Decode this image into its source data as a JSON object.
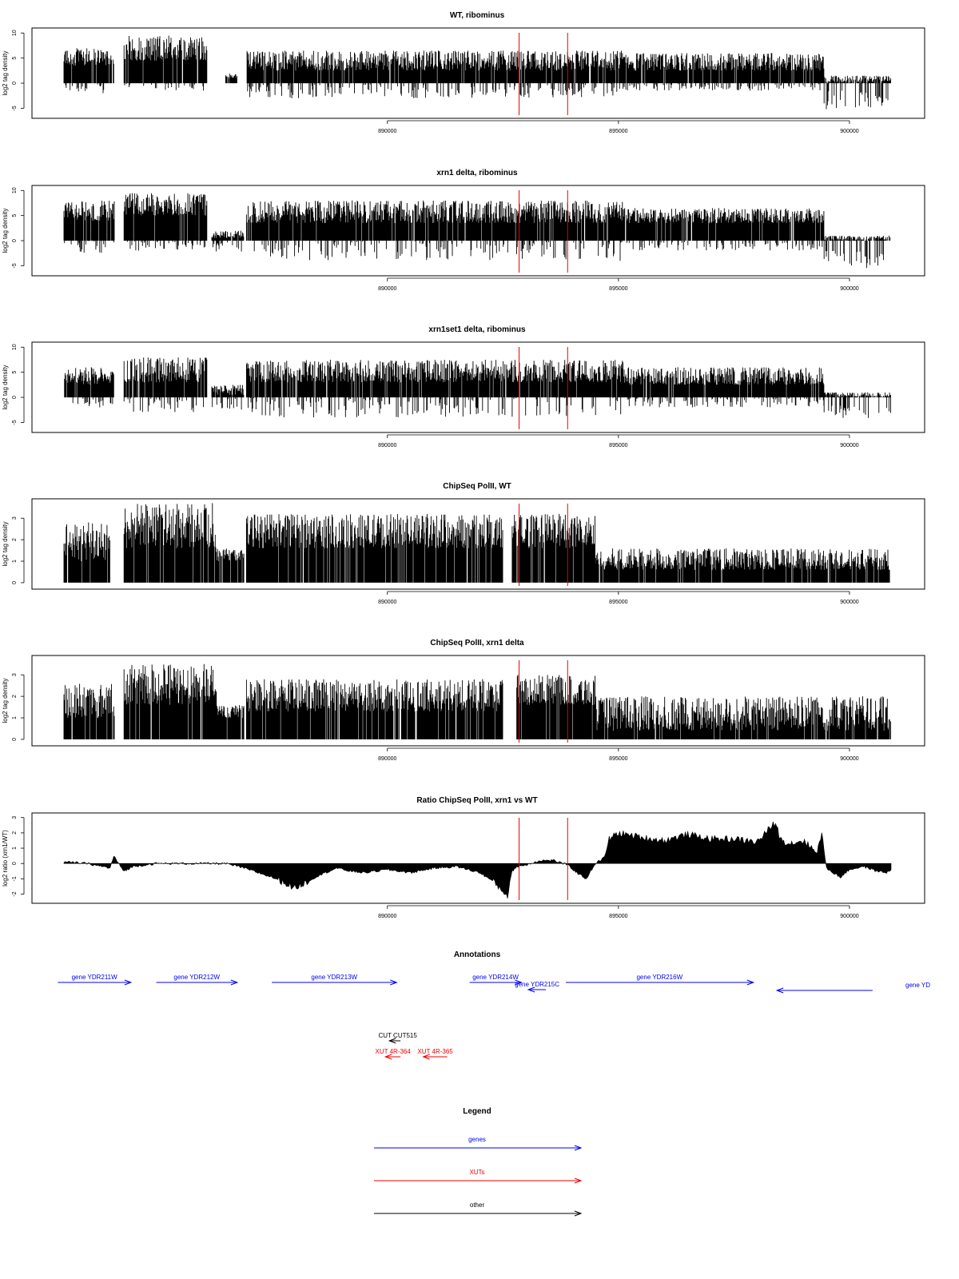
{
  "chart_data": [
    {
      "type": "bar",
      "title": "WT, ribominus",
      "ylabel": "log2 tag density",
      "xlabel": "",
      "ylim": [
        -7,
        11
      ],
      "yticks": [
        -5,
        0,
        5,
        10
      ],
      "xlim": [
        882000,
        902000
      ],
      "xticks": [
        890000,
        895000,
        900000
      ],
      "red_lines": [
        892850,
        893900
      ],
      "segments": [
        {
          "x": [
            883000,
            884080
          ],
          "pos": [
            3.5,
            7
          ],
          "neg": [
            0,
            2
          ]
        },
        {
          "x": [
            884300,
            886100
          ],
          "pos": [
            4.5,
            9.5
          ],
          "neg": [
            0,
            1.5
          ]
        },
        {
          "x": [
            886500,
            886750
          ],
          "pos": [
            1,
            2
          ],
          "neg": [
            0,
            0
          ]
        },
        {
          "x": [
            886950,
            895100
          ],
          "pos": [
            2.5,
            6.5
          ],
          "neg": [
            0,
            3
          ]
        },
        {
          "x": [
            895100,
            899450
          ],
          "pos": [
            2.5,
            6
          ],
          "neg": [
            0,
            1.5
          ]
        },
        {
          "x": [
            899450,
            900900
          ],
          "pos": [
            0,
            1.5
          ],
          "neg": [
            1.5,
            5.5
          ]
        }
      ]
    },
    {
      "type": "bar",
      "title": "xrn1 delta, ribominus",
      "ylabel": "log2 tag density",
      "xlabel": "",
      "ylim": [
        -7,
        11
      ],
      "yticks": [
        -5,
        0,
        5,
        10
      ],
      "xlim": [
        882000,
        902000
      ],
      "xticks": [
        890000,
        895000,
        900000
      ],
      "red_lines": [
        892850,
        893900
      ],
      "segments": [
        {
          "x": [
            883000,
            884100
          ],
          "pos": [
            4,
            8
          ],
          "neg": [
            0,
            2.5
          ]
        },
        {
          "x": [
            884300,
            886100
          ],
          "pos": [
            5,
            9.5
          ],
          "neg": [
            0,
            2
          ]
        },
        {
          "x": [
            886200,
            886900
          ],
          "pos": [
            0.5,
            2
          ],
          "neg": [
            0,
            2.5
          ]
        },
        {
          "x": [
            886950,
            895100
          ],
          "pos": [
            3.5,
            8
          ],
          "neg": [
            0,
            4
          ]
        },
        {
          "x": [
            895100,
            899450
          ],
          "pos": [
            3.5,
            6.5
          ],
          "neg": [
            0,
            2
          ]
        },
        {
          "x": [
            899450,
            900900
          ],
          "pos": [
            0,
            1
          ],
          "neg": [
            2,
            5.5
          ]
        }
      ]
    },
    {
      "type": "bar",
      "title": "xrn1set1 delta, ribominus",
      "ylabel": "log2 tag density",
      "xlabel": "",
      "ylim": [
        -7,
        11
      ],
      "yticks": [
        -5,
        0,
        5,
        10
      ],
      "xlim": [
        882000,
        902000
      ],
      "xticks": [
        890000,
        895000,
        900000
      ],
      "red_lines": [
        892850,
        893900
      ],
      "segments": [
        {
          "x": [
            883000,
            884080
          ],
          "pos": [
            2.5,
            6
          ],
          "neg": [
            0,
            2
          ]
        },
        {
          "x": [
            884300,
            886100
          ],
          "pos": [
            3,
            8
          ],
          "neg": [
            0,
            3
          ]
        },
        {
          "x": [
            886200,
            886900
          ],
          "pos": [
            0.5,
            2.5
          ],
          "neg": [
            0,
            2.5
          ]
        },
        {
          "x": [
            886950,
            895100
          ],
          "pos": [
            3,
            7.5
          ],
          "neg": [
            0,
            4
          ]
        },
        {
          "x": [
            895100,
            899450
          ],
          "pos": [
            2.5,
            6
          ],
          "neg": [
            0,
            2
          ]
        },
        {
          "x": [
            899450,
            900900
          ],
          "pos": [
            0,
            1
          ],
          "neg": [
            1.5,
            4.5
          ]
        }
      ]
    },
    {
      "type": "bar",
      "title": "ChipSeq PolII, WT",
      "ylabel": "log2 tag density",
      "xlabel": "",
      "ylim": [
        -0.3,
        3.9
      ],
      "yticks": [
        0,
        1,
        2,
        3
      ],
      "xlim": [
        882000,
        902000
      ],
      "xticks": [
        890000,
        895000,
        900000
      ],
      "red_lines": [
        892850,
        893900
      ],
      "segments": [
        {
          "x": [
            883000,
            884000
          ],
          "pos": [
            1,
            2.8
          ],
          "neg": [
            0,
            0
          ]
        },
        {
          "x": [
            884300,
            886300
          ],
          "pos": [
            1.6,
            3.7
          ],
          "neg": [
            0,
            0
          ]
        },
        {
          "x": [
            886300,
            886900
          ],
          "pos": [
            1,
            1.6
          ],
          "neg": [
            0,
            0
          ]
        },
        {
          "x": [
            886950,
            892500
          ],
          "pos": [
            1.6,
            3.2
          ],
          "neg": [
            0,
            0
          ]
        },
        {
          "x": [
            892700,
            894500
          ],
          "pos": [
            1.6,
            3.2
          ],
          "neg": [
            0,
            0
          ]
        },
        {
          "x": [
            894500,
            900900
          ],
          "pos": [
            0.6,
            1.6
          ],
          "neg": [
            0,
            0
          ]
        }
      ]
    },
    {
      "type": "bar",
      "title": "ChipSeq PolII, xrn1 delta",
      "ylabel": "log2 tag density",
      "xlabel": "",
      "ylim": [
        -0.3,
        3.9
      ],
      "yticks": [
        0,
        1,
        2,
        3
      ],
      "xlim": [
        882000,
        902000
      ],
      "xticks": [
        890000,
        895000,
        900000
      ],
      "red_lines": [
        892850,
        893900
      ],
      "segments": [
        {
          "x": [
            883000,
            884100
          ],
          "pos": [
            1,
            2.6
          ],
          "neg": [
            0,
            0
          ]
        },
        {
          "x": [
            884300,
            886300
          ],
          "pos": [
            1.6,
            3.5
          ],
          "neg": [
            0,
            0
          ]
        },
        {
          "x": [
            886300,
            886900
          ],
          "pos": [
            1,
            1.6
          ],
          "neg": [
            0,
            0
          ]
        },
        {
          "x": [
            886950,
            892500
          ],
          "pos": [
            1.3,
            2.8
          ],
          "neg": [
            0,
            0
          ]
        },
        {
          "x": [
            892800,
            894500
          ],
          "pos": [
            1.6,
            3
          ],
          "neg": [
            0,
            0
          ]
        },
        {
          "x": [
            894500,
            900900
          ],
          "pos": [
            0.4,
            2
          ],
          "neg": [
            0,
            0
          ]
        }
      ]
    },
    {
      "type": "area",
      "title": "Ratio ChipSeq PolII, xrn1 vs WT",
      "ylabel": "log2 ratio (xrn1/WT)",
      "xlabel": "",
      "ylim": [
        -2.6,
        3.3
      ],
      "yticks": [
        -2,
        -1,
        0,
        1,
        2,
        3
      ],
      "xlim": [
        882000,
        902000
      ],
      "xticks": [
        890000,
        895000,
        900000
      ],
      "red_lines": [
        892850,
        893900
      ],
      "x": [
        883000,
        883500,
        884000,
        884080,
        884200,
        884300,
        884500,
        885000,
        885500,
        886200,
        886500,
        886900,
        887200,
        887600,
        888000,
        888500,
        888900,
        889200,
        889500,
        890000,
        890500,
        891000,
        891500,
        892000,
        892300,
        892600,
        892700,
        892800,
        893000,
        893300,
        893600,
        893900,
        894100,
        894300,
        894500,
        894700,
        894800,
        895000,
        895500,
        896000,
        896500,
        897000,
        897500,
        898000,
        898400,
        898500,
        898700,
        899000,
        899300,
        899400,
        899500,
        899800,
        900000,
        900300,
        900600,
        900800,
        900900
      ],
      "y": [
        0.1,
        0.0,
        -0.3,
        0.5,
        -0.1,
        -0.5,
        -0.2,
        0.0,
        0.0,
        0.0,
        0.0,
        -0.3,
        -0.6,
        -1.0,
        -1.6,
        -0.8,
        -0.3,
        -0.5,
        -0.6,
        -0.4,
        -0.6,
        -0.3,
        -0.2,
        -0.6,
        -1.2,
        -2.1,
        -0.5,
        -0.2,
        -0.1,
        0.2,
        0.2,
        -0.1,
        -0.6,
        -1.0,
        0.0,
        0.4,
        1.6,
        2.0,
        1.7,
        1.5,
        1.9,
        1.6,
        1.6,
        1.4,
        2.7,
        1.6,
        1.3,
        1.5,
        0.7,
        2.0,
        -0.3,
        -0.9,
        -0.4,
        -0.2,
        -0.5,
        -0.6,
        -0.4
      ]
    }
  ],
  "annotations": {
    "title": "Annotations",
    "genes": [
      {
        "label": "gene YDR211W",
        "x1": 882870,
        "x2": 884450,
        "dir": "right",
        "row": 0
      },
      {
        "label": "gene YDR212W",
        "x1": 885000,
        "x2": 886750,
        "dir": "right",
        "row": 0
      },
      {
        "label": "gene YDR213W",
        "x1": 887500,
        "x2": 890200,
        "dir": "right",
        "row": 0
      },
      {
        "label": "gene YDR214W",
        "x1": 891780,
        "x2": 892900,
        "dir": "right",
        "row": 0
      },
      {
        "label": "gene YDR215C",
        "x1": 893050,
        "x2": 893430,
        "dir": "left",
        "row": 1
      },
      {
        "label": "gene YDR216W",
        "x1": 893860,
        "x2": 897920,
        "dir": "right",
        "row": 0
      },
      {
        "label": "gene YD",
        "x1": 898430,
        "x2": 900500,
        "dir": "left",
        "row": 2
      }
    ],
    "other": [
      {
        "label": "CUT CUT515",
        "x1": 889870,
        "x2": 890370,
        "dir": "left"
      }
    ],
    "xuts": [
      {
        "label": "XUT 4R-364",
        "x1": 889870,
        "x2": 890370,
        "dir": "left"
      },
      {
        "label": "XUT 4R-365",
        "x1": 890690,
        "x2": 891380,
        "dir": "left"
      }
    ]
  },
  "legend": {
    "title": "Legend",
    "items": [
      {
        "label": "genes",
        "color": "#0000ee"
      },
      {
        "label": "XUTs",
        "color": "#ee0000"
      },
      {
        "label": "other",
        "color": "#000000"
      }
    ]
  },
  "colors": {
    "bars": "#000000",
    "marker_lines": "#ee0000",
    "genes": "#0000ee",
    "xuts": "#ee0000",
    "other": "#000000"
  }
}
